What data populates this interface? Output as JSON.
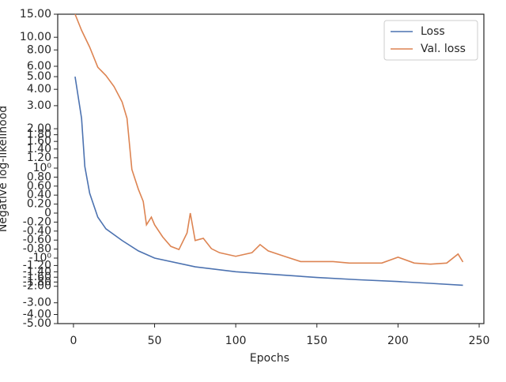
{
  "chart_data": {
    "type": "line",
    "xlabel": "Epochs",
    "ylabel": "Negative log-likelihood",
    "xlim": [
      -9.7,
      252.9
    ],
    "xticks": [
      0,
      50,
      100,
      150,
      200,
      250
    ],
    "yscale": "symlog",
    "linthresh": 1,
    "ylim": [
      -5,
      15
    ],
    "yticks": [
      {
        "value": -5,
        "label": "-5.00"
      },
      {
        "value": -4,
        "label": "-4.00"
      },
      {
        "value": -3,
        "label": "-3.00"
      },
      {
        "value": -2,
        "label": "-2.00"
      },
      {
        "value": -1.8,
        "label": "-1.80"
      },
      {
        "value": -1.6,
        "label": "-1.60"
      },
      {
        "value": -1.4,
        "label": "-1.40"
      },
      {
        "value": -1.2,
        "label": "-1.20"
      },
      {
        "value": -1,
        "label": "-10⁰"
      },
      {
        "value": -0.8,
        "label": "-0.80"
      },
      {
        "value": -0.6,
        "label": "-0.60"
      },
      {
        "value": -0.4,
        "label": "-0.40"
      },
      {
        "value": -0.2,
        "label": "-0.20"
      },
      0,
      {
        "value": 0.2,
        "label": "0.20"
      },
      {
        "value": 0.4,
        "label": "0.40"
      },
      {
        "value": 0.6,
        "label": "0.60"
      },
      {
        "value": 0.8,
        "label": "0.80"
      },
      {
        "value": 1,
        "label": "10⁰"
      },
      {
        "value": 1.2,
        "label": "1.20"
      },
      {
        "value": 1.4,
        "label": "1.40"
      },
      {
        "value": 1.6,
        "label": "1.60"
      },
      {
        "value": 1.8,
        "label": "1.80"
      },
      {
        "value": 2,
        "label": "2.00"
      },
      {
        "value": 3,
        "label": "3.00"
      },
      {
        "value": 4,
        "label": "4.00"
      },
      {
        "value": 5,
        "label": "5.00"
      },
      {
        "value": 6,
        "label": "6.00"
      },
      {
        "value": 8,
        "label": "8.00"
      },
      {
        "value": 10,
        "label": "10.00"
      },
      {
        "value": 15,
        "label": "15.00"
      }
    ],
    "legend": "upper right",
    "series": [
      {
        "name": "Loss",
        "color": "#4c72b0",
        "x": [
          1,
          5,
          7,
          10,
          15,
          20,
          30,
          40,
          50,
          75,
          100,
          125,
          150,
          175,
          200,
          220,
          240
        ],
        "values": [
          5.0,
          2.4,
          1.03,
          0.44,
          -0.09,
          -0.35,
          -0.61,
          -0.84,
          -1.0,
          -1.24,
          -1.4,
          -1.5,
          -1.61,
          -1.7,
          -1.78,
          -1.86,
          -1.95
        ]
      },
      {
        "name": "Val. loss",
        "color": "#dd8452",
        "x": [
          1,
          5,
          10,
          15,
          20,
          25,
          30,
          33,
          36,
          40,
          43,
          45,
          48,
          50,
          55,
          60,
          65,
          70,
          72,
          75,
          80,
          85,
          90,
          100,
          110,
          115,
          120,
          130,
          140,
          150,
          160,
          170,
          180,
          190,
          200,
          210,
          220,
          230,
          237,
          240
        ],
        "values": [
          15,
          11.3,
          8.4,
          5.9,
          5.1,
          4.2,
          3.2,
          2.4,
          0.97,
          0.53,
          0.26,
          -0.26,
          -0.09,
          -0.26,
          -0.53,
          -0.74,
          -0.81,
          -0.44,
          0,
          -0.61,
          -0.56,
          -0.79,
          -0.88,
          -0.96,
          -0.88,
          -0.7,
          -0.84,
          -0.96,
          -1.09,
          -1.09,
          -1.09,
          -1.13,
          -1.13,
          -1.13,
          -0.98,
          -1.13,
          -1.16,
          -1.13,
          -0.91,
          -1.1
        ]
      }
    ]
  }
}
